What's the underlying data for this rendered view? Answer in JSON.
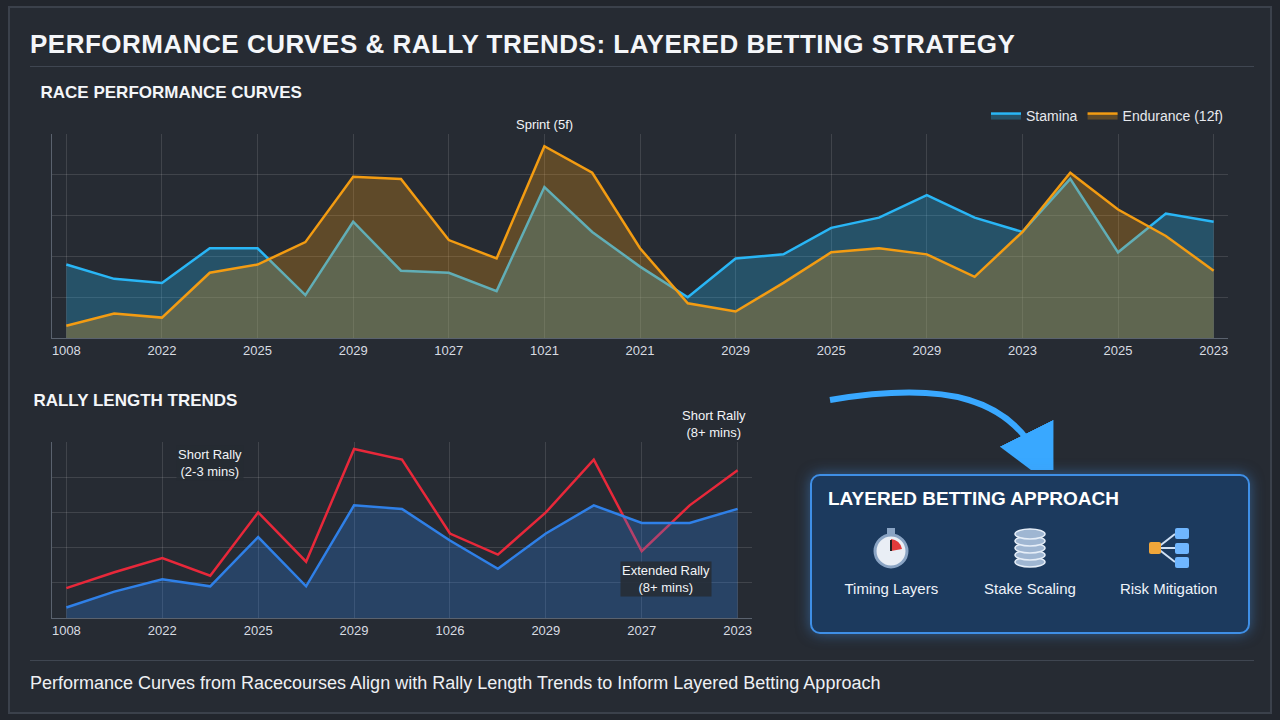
{
  "title": "PERFORMANCE CURVES & RALLY TRENDS: LAYERED BETTING STRATEGY",
  "chart_data": [
    {
      "type": "area",
      "title": "RACE PERFORMANCE CURVES",
      "categories": [
        "1008",
        null,
        "2022",
        null,
        "2025",
        null,
        "2029",
        null,
        "1027",
        null,
        "1021",
        null,
        "2021",
        null,
        "2029",
        null,
        "2025",
        null,
        "2029",
        null,
        "2023",
        null,
        "2025",
        null,
        "2023"
      ],
      "series": [
        {
          "name": "Stamina",
          "color": "#29b6f6",
          "values": [
            36,
            29,
            27,
            44,
            44,
            21,
            57,
            33,
            32,
            23,
            74,
            52,
            35,
            20,
            39,
            41,
            54,
            59,
            70,
            59,
            52,
            78,
            42,
            61,
            57
          ]
        },
        {
          "name": "Endurance (12f)",
          "color": "#f39c12",
          "values": [
            6,
            12,
            10,
            32,
            36,
            47,
            79,
            78,
            48,
            39,
            94,
            81,
            44,
            17,
            13,
            27,
            42,
            44,
            41,
            30,
            52,
            81,
            63,
            50,
            33
          ]
        }
      ],
      "ylim": [
        0,
        100
      ],
      "yticks": [
        0,
        20,
        40,
        60,
        80,
        100
      ],
      "grid": true,
      "legend": "top right",
      "tick_labels": "x",
      "annotations": [
        {
          "text": "Sprint (5f)",
          "x": 10,
          "y": 100
        }
      ]
    },
    {
      "type": "line",
      "title": "RALLY LENGTH TRENDS",
      "categories": [
        "1008",
        null,
        "2022",
        null,
        "2025",
        null,
        "2029",
        null,
        "1026",
        null,
        "2029",
        null,
        "2027",
        null,
        "2023"
      ],
      "series": [
        {
          "color": "#e8283a",
          "type": "line",
          "values": [
            17,
            26,
            34,
            24,
            60,
            32,
            96,
            90,
            48,
            36,
            60,
            90,
            38,
            64,
            84
          ]
        },
        {
          "color": "#2f80e8",
          "type": "area",
          "values": [
            6,
            15,
            22,
            18,
            46,
            18,
            64,
            62,
            44,
            28,
            48,
            64,
            54,
            54,
            62
          ]
        }
      ],
      "ylim": [
        0,
        100
      ],
      "yticks": [
        0,
        20,
        40,
        60,
        80,
        100
      ],
      "grid": true,
      "tick_labels": "x",
      "annotations": [
        {
          "text": "Short Rally (2-3 mins)",
          "x": 3,
          "y": 88
        },
        {
          "text": "Short Rally (8+ mins)",
          "x": 13.5,
          "y": 100
        },
        {
          "text": "Extended Rally (8+ mins)",
          "x": 12.5,
          "y": 22
        }
      ]
    }
  ],
  "panel": {
    "title": "LAYERED BETTING APPROACH",
    "items": [
      "Timing Layers",
      "Stake Scaling",
      "Risk Mitigation"
    ]
  },
  "footer": "Performance Curves from Racecourses Align with Rally Length Trends to Inform Layered Betting Approach"
}
